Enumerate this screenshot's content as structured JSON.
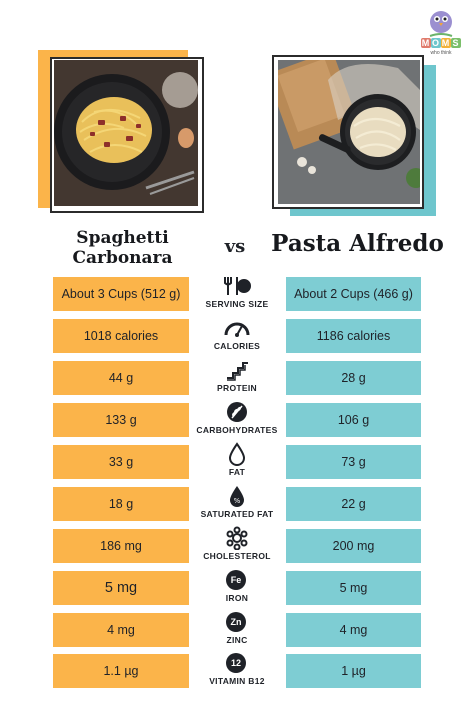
{
  "brand": {
    "logo_text": "MOMS",
    "tagline": "who think"
  },
  "foods": {
    "left": "Spaghetti Carbonara",
    "left_line1": "Spaghetti",
    "left_line2": "Carbonara",
    "vs": "vs",
    "right": "Pasta Alfredo"
  },
  "colors": {
    "left_accent": "#fbb44a",
    "right_accent": "#7ecdd3",
    "text": "#1f2228"
  },
  "rows": [
    {
      "label": "SERVING SIZE",
      "icon": "utensils-icon",
      "left": "About 3 Cups (512 g)",
      "right": "About 2 Cups (466 g)"
    },
    {
      "label": "CALORIES",
      "icon": "gauge-icon",
      "left": "1018 calories",
      "right": "1186 calories"
    },
    {
      "label": "PROTEIN",
      "icon": "stairs-icon",
      "left": "44 g",
      "right": "28 g"
    },
    {
      "label": "CARBOHYDRATES",
      "icon": "wheat-icon",
      "left": "133 g",
      "right": "106 g"
    },
    {
      "label": "FAT",
      "icon": "drop-icon",
      "left": "33 g",
      "right": "73 g"
    },
    {
      "label": "SATURATED FAT",
      "icon": "drop-percent-icon",
      "left": "18 g",
      "right": "22 g"
    },
    {
      "label": "CHOLESTEROL",
      "icon": "molecule-icon",
      "left": "186 mg",
      "right": "200 mg"
    },
    {
      "label": "IRON",
      "icon": "Fe",
      "left": "5 mg",
      "right": "5 mg"
    },
    {
      "label": "ZINC",
      "icon": "Zn",
      "left": "4 mg",
      "right": "4 mg"
    },
    {
      "label": "VITAMIN B12",
      "icon": "12",
      "left": "1.1 µg",
      "right": "1 µg"
    }
  ]
}
